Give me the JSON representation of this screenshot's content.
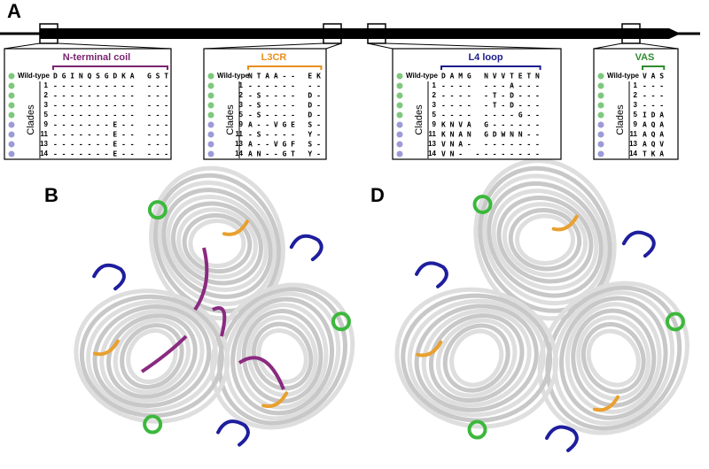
{
  "panels": {
    "A": "A",
    "B": "B",
    "D": "D"
  },
  "regions": [
    {
      "title": "N-terminal coil",
      "wild_type_label": "Wild-type",
      "wild_type": "D G I N Q S G D K A   G S T",
      "clades_label": "Clades",
      "rows": [
        {
          "clade": "1",
          "sequence": "- - - - - - - - - -   - - -"
        },
        {
          "clade": "2",
          "sequence": "- - - - - - - - - -   - - -"
        },
        {
          "clade": "3",
          "sequence": "- - - - - - - - - -   - - -"
        },
        {
          "clade": "5",
          "sequence": "- - - - - - - - - -   - - -"
        },
        {
          "clade": "9",
          "sequence": "- - - - - - - E - -   - - -"
        },
        {
          "clade": "11",
          "sequence": "- - - - - - - E - -   - - -"
        },
        {
          "clade": "13",
          "sequence": "- - - - - - - E - -   - - -"
        },
        {
          "clade": "14",
          "sequence": "- - - - - - - E - -   - - -"
        }
      ]
    },
    {
      "title": "L3CR",
      "wild_type_label": "Wild-type",
      "wild_type": "N T A A - -   E K",
      "clades_label": "Clades",
      "rows": [
        {
          "clade": "1",
          "sequence": "- - - - - -   - -"
        },
        {
          "clade": "2",
          "sequence": "- S - - - -   D -"
        },
        {
          "clade": "3",
          "sequence": "- S - - - -   D -"
        },
        {
          "clade": "5",
          "sequence": "- S - - - -   D -"
        },
        {
          "clade": "9",
          "sequence": "A - - V G E   S -"
        },
        {
          "clade": "11",
          "sequence": "- S - - - -   Y -"
        },
        {
          "clade": "13",
          "sequence": "A - - V G F   S -"
        },
        {
          "clade": "14",
          "sequence": "A N - - G T   Y -"
        }
      ]
    },
    {
      "title": "L4 loop",
      "wild_type_label": "Wild-type",
      "wild_type": "D A M G   N V V T E T N",
      "clades_label": "Clades",
      "rows": [
        {
          "clade": "1",
          "sequence": "- - - -   - - - A - - -"
        },
        {
          "clade": "2",
          "sequence": "- - - -   - T - D - - -"
        },
        {
          "clade": "3",
          "sequence": "- - - -   - T - D - - -"
        },
        {
          "clade": "5",
          "sequence": "- - - -   - - - - G - -"
        },
        {
          "clade": "9",
          "sequence": "K N V A   G - - - - - -"
        },
        {
          "clade": "11",
          "sequence": "K N A N   G D W N N - -"
        },
        {
          "clade": "13",
          "sequence": "V N A -   - - - - - - -"
        },
        {
          "clade": "14",
          "sequence": "V N -   - - - - - - - -"
        }
      ]
    },
    {
      "title": "VAS",
      "wild_type_label": "Wild-type",
      "wild_type": "V A S",
      "clades_label": "Clades",
      "rows": [
        {
          "clade": "1",
          "sequence": "- - -"
        },
        {
          "clade": "2",
          "sequence": "- - -"
        },
        {
          "clade": "3",
          "sequence": "- - -"
        },
        {
          "clade": "5",
          "sequence": "I D A"
        },
        {
          "clade": "9",
          "sequence": "A Q A"
        },
        {
          "clade": "11",
          "sequence": "A Q A"
        },
        {
          "clade": "13",
          "sequence": "A Q V"
        },
        {
          "clade": "14",
          "sequence": "T K A"
        }
      ]
    }
  ]
}
